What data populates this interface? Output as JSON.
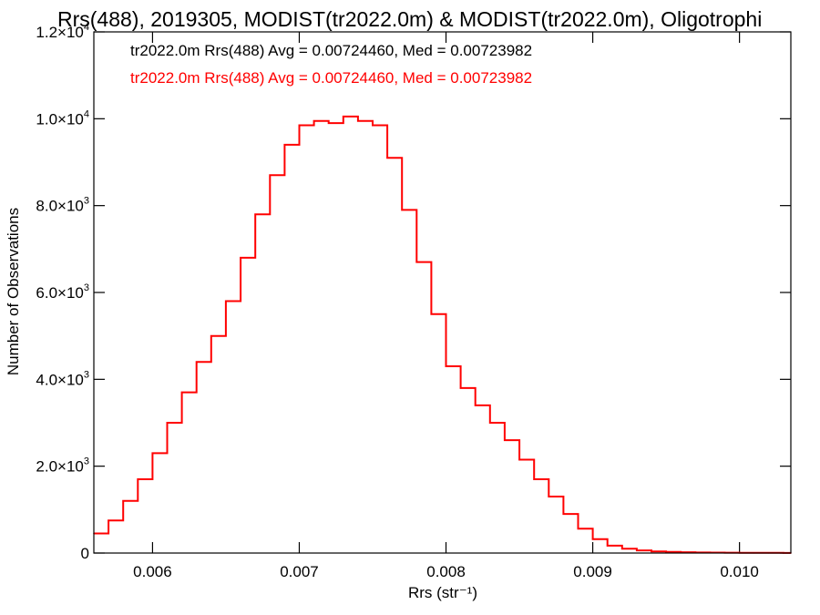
{
  "chart_data": {
    "type": "line",
    "title": "Rrs(488), 2019305, MODIST(tr2022.0m) & MODIST(tr2022.0m), Oligotrophi",
    "xlabel": "Rrs (str⁻¹)",
    "ylabel": "Number of Observations",
    "xlim": [
      0.0056,
      0.01035
    ],
    "ylim": [
      0,
      12000
    ],
    "x_ticks": [
      {
        "value": 0.006,
        "label": "0.006"
      },
      {
        "value": 0.007,
        "label": "0.007"
      },
      {
        "value": 0.008,
        "label": "0.008"
      },
      {
        "value": 0.009,
        "label": "0.009"
      },
      {
        "value": 0.01,
        "label": "0.010"
      }
    ],
    "y_ticks": [
      {
        "value": 0,
        "mant": "0",
        "exp": ""
      },
      {
        "value": 2000,
        "mant": "2.0×10",
        "exp": "3"
      },
      {
        "value": 4000,
        "mant": "4.0×10",
        "exp": "3"
      },
      {
        "value": 6000,
        "mant": "6.0×10",
        "exp": "3"
      },
      {
        "value": 8000,
        "mant": "8.0×10",
        "exp": "3"
      },
      {
        "value": 10000,
        "mant": "1.0×10",
        "exp": "4"
      },
      {
        "value": 12000,
        "mant": "1.2×10",
        "exp": "4"
      }
    ],
    "annotations": [
      {
        "text": "tr2022.0m Rrs(488) Avg = 0.00724460, Med = 0.00723982",
        "color": "#000000"
      },
      {
        "text": "tr2022.0m Rrs(488) Avg = 0.00724460, Med = 0.00723982",
        "color": "#ff0000"
      }
    ],
    "series": [
      {
        "color": "#ff0000",
        "style": "step",
        "x": [
          0.0056,
          0.0057,
          0.0058,
          0.0059,
          0.006,
          0.0061,
          0.0062,
          0.0063,
          0.0064,
          0.0065,
          0.0066,
          0.0067,
          0.0068,
          0.0069,
          0.007,
          0.0071,
          0.0072,
          0.0073,
          0.0074,
          0.0075,
          0.0076,
          0.0077,
          0.0078,
          0.0079,
          0.008,
          0.0081,
          0.0082,
          0.0083,
          0.0084,
          0.0085,
          0.0086,
          0.0087,
          0.0088,
          0.0089,
          0.009,
          0.0091,
          0.0092,
          0.0093,
          0.0094,
          0.0095,
          0.0096,
          0.0097,
          0.0098,
          0.0099,
          0.01,
          0.0101,
          0.0102,
          0.0103,
          0.01035
        ],
        "y": [
          450,
          750,
          1200,
          1700,
          2300,
          3000,
          3700,
          4400,
          5000,
          5800,
          6800,
          7800,
          8700,
          9400,
          9850,
          9950,
          9900,
          10050,
          9950,
          9850,
          9100,
          7900,
          6700,
          5500,
          4300,
          3800,
          3400,
          3000,
          2600,
          2150,
          1700,
          1300,
          900,
          560,
          320,
          170,
          100,
          60,
          35,
          25,
          18,
          12,
          10,
          8,
          6,
          5,
          4,
          3,
          3
        ]
      }
    ]
  }
}
